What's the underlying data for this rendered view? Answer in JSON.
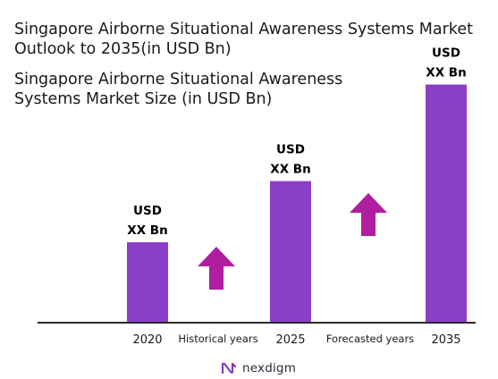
{
  "title": "Singapore Airborne Situational Awareness Systems Market Outlook to 2035(in USD Bn)",
  "subtitle": "Singapore Airborne Situational Awareness Systems Market Size (in USD Bn)",
  "brand": "nexdigm",
  "colors": {
    "bar": "#8b3fc8",
    "arrow": "#b01ea0",
    "axis": "#2a2a2a"
  },
  "chart_data": {
    "type": "bar",
    "categories": [
      "2020",
      "2025",
      "2035"
    ],
    "values": [
      0.25,
      0.44,
      0.74
    ],
    "value_labels": [
      [
        "USD",
        "XX Bn"
      ],
      [
        "USD",
        "XX Bn"
      ],
      [
        "USD",
        "XX Bn"
      ]
    ],
    "period_labels": [
      "Historical years",
      "Forecasted years"
    ],
    "trend_arrows": [
      "up",
      "up"
    ],
    "ylim": [
      0,
      1
    ],
    "grid": false,
    "legend": "none"
  }
}
